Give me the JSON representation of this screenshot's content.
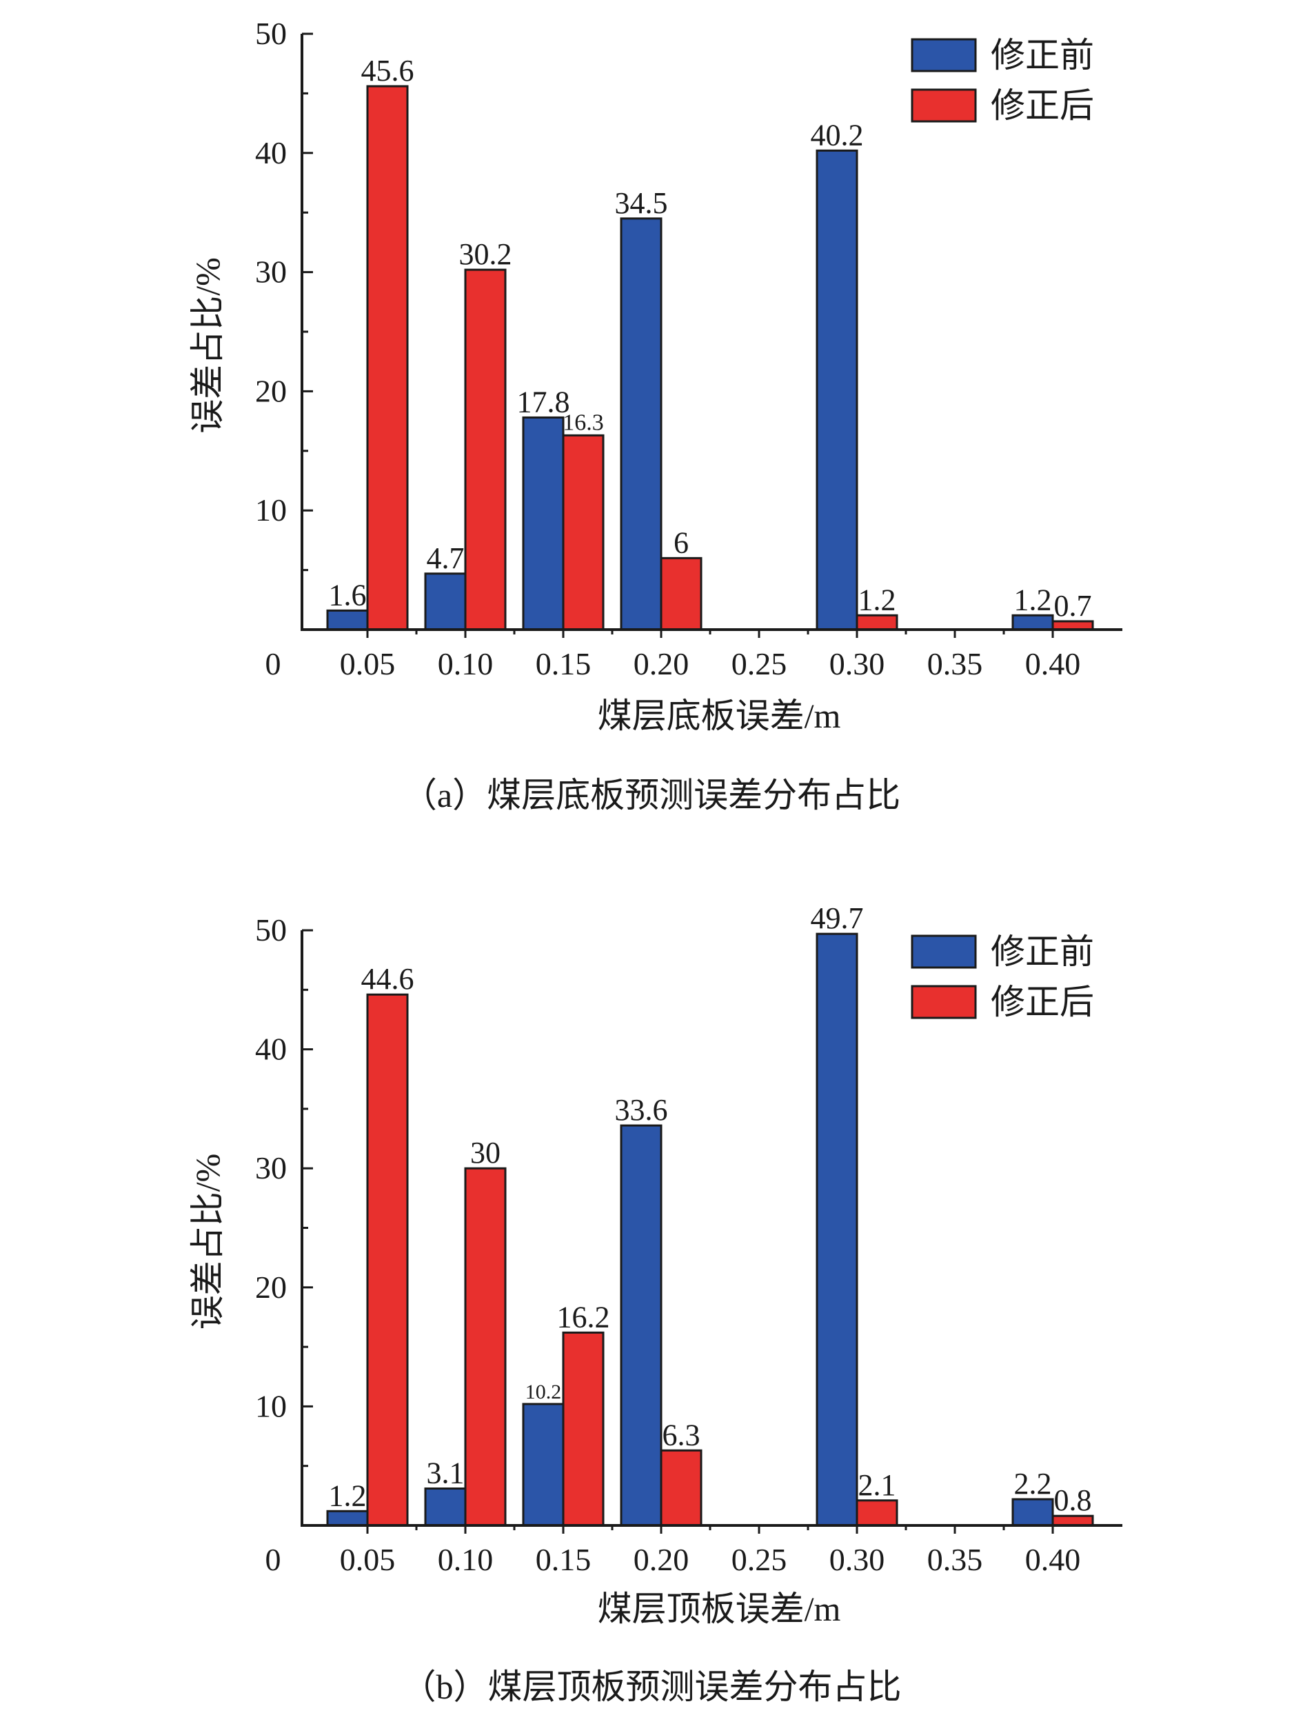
{
  "colors": {
    "before": "#2b55a8",
    "after": "#e8302e",
    "axis": "#1a1a1a"
  },
  "chart_data": [
    {
      "type": "bar",
      "title": "（a）煤层底板预测误差分布占比",
      "xlabel": "煤层底板误差/m",
      "ylabel": "误差占比/%",
      "origin_label": "0",
      "ylim": [
        0,
        50
      ],
      "yticks": [
        "10",
        "20",
        "30",
        "40",
        "50"
      ],
      "categories": [
        "0.05",
        "0.10",
        "0.15",
        "0.20",
        "0.25",
        "0.30",
        "0.35",
        "0.40"
      ],
      "series": [
        {
          "name": "修正前",
          "values": [
            1.6,
            4.7,
            17.8,
            34.5,
            null,
            40.2,
            null,
            1.2
          ],
          "labels": [
            "1.6",
            "4.7",
            "17.8",
            "34.5",
            "",
            "40.2",
            "",
            "1.2"
          ]
        },
        {
          "name": "修正后",
          "values": [
            45.6,
            30.2,
            16.3,
            6,
            null,
            1.2,
            null,
            0.7
          ],
          "labels": [
            "45.6",
            "30.2",
            "16.3",
            "6",
            "",
            "1.2",
            "",
            "0.7"
          ]
        }
      ],
      "legend": "top-right"
    },
    {
      "type": "bar",
      "title": "（b）煤层顶板预测误差分布占比",
      "xlabel": "煤层顶板误差/m",
      "ylabel": "误差占比/%",
      "origin_label": "0",
      "ylim": [
        0,
        50
      ],
      "yticks": [
        "10",
        "20",
        "30",
        "40",
        "50"
      ],
      "categories": [
        "0.05",
        "0.10",
        "0.15",
        "0.20",
        "0.25",
        "0.30",
        "0.35",
        "0.40"
      ],
      "series": [
        {
          "name": "修正前",
          "values": [
            1.2,
            3.1,
            10.2,
            33.6,
            null,
            49.7,
            null,
            2.2
          ],
          "labels": [
            "1.2",
            "3.1",
            "10.2",
            "33.6",
            "",
            "49.7",
            "",
            "2.2"
          ]
        },
        {
          "name": "修正后",
          "values": [
            44.6,
            30,
            16.2,
            6.3,
            null,
            2.1,
            null,
            0.8
          ],
          "labels": [
            "44.6",
            "30",
            "16.2",
            "6.3",
            "",
            "2.1",
            "",
            "0.8"
          ]
        }
      ],
      "legend": "top-right"
    }
  ]
}
